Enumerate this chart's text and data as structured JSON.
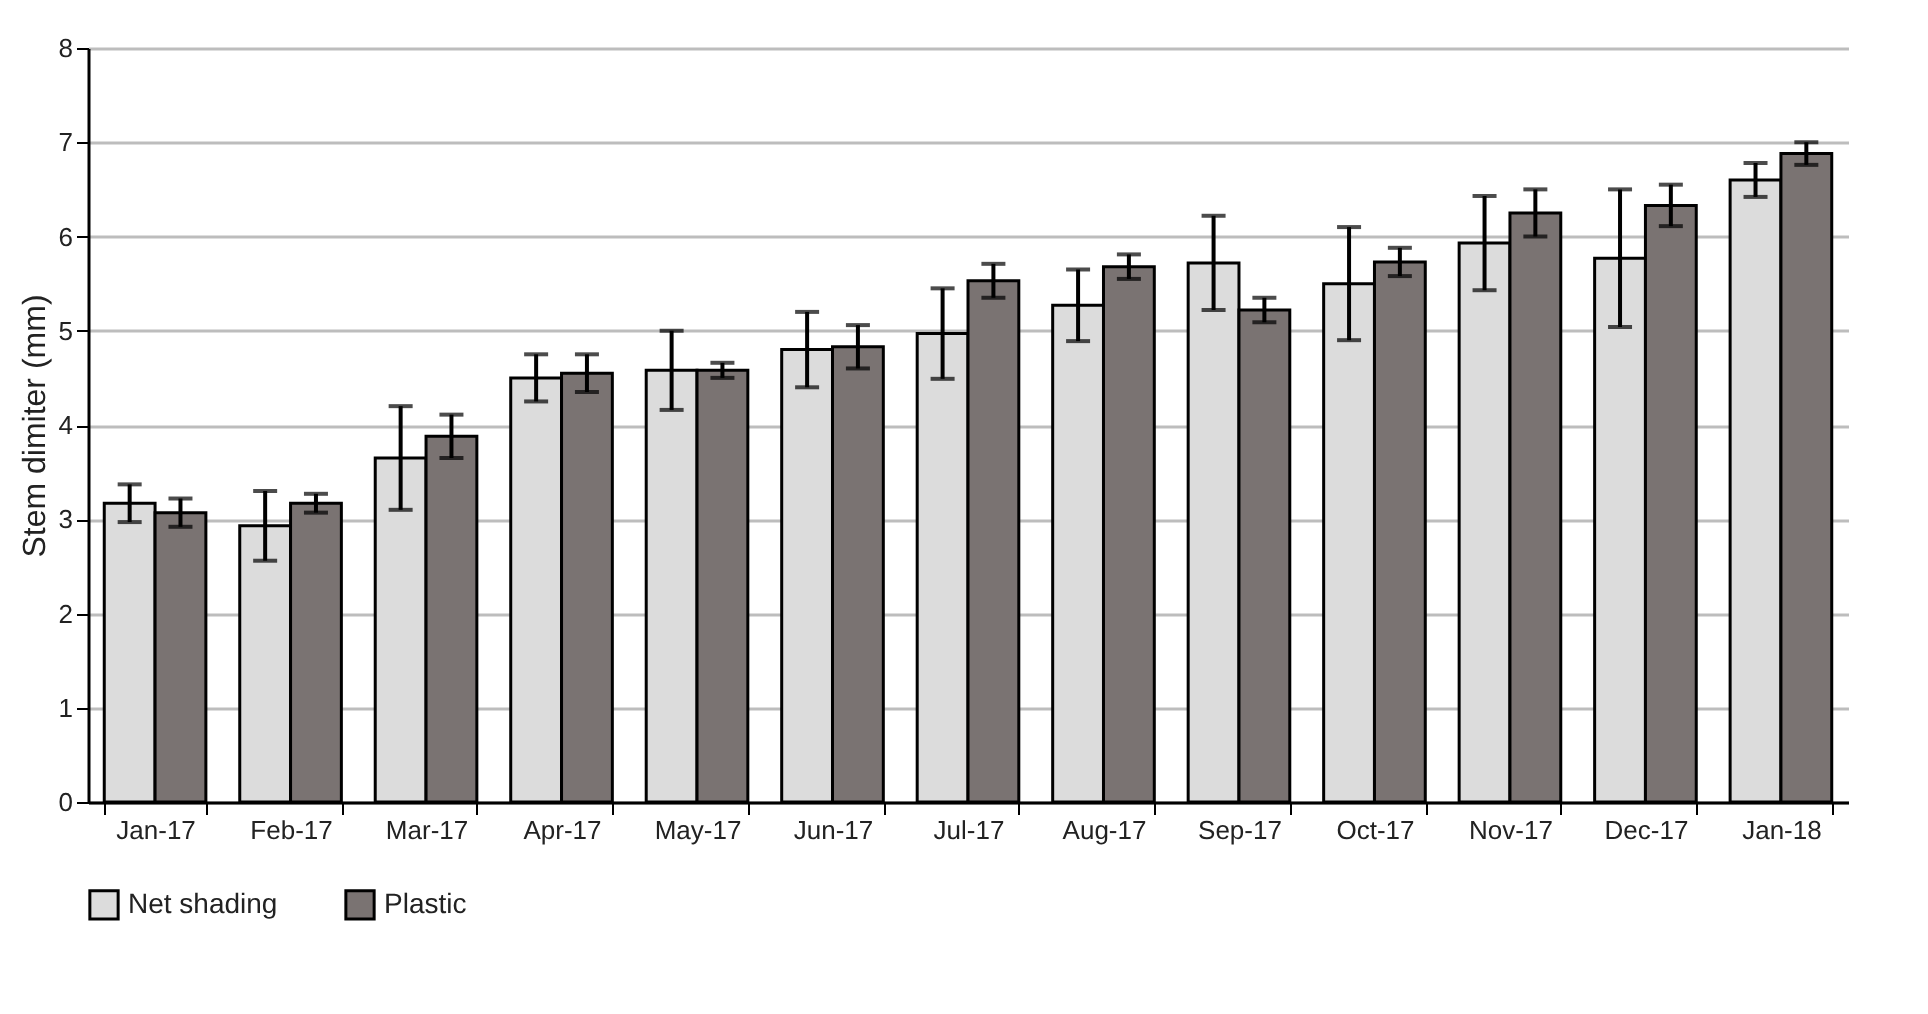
{
  "chart_data": {
    "type": "bar",
    "ylabel": "Stem dimiter (mm)",
    "categories": [
      "Jan-17",
      "Feb-17",
      "Mar-17",
      "Apr-17",
      "May-17",
      "Jun-17",
      "Jul-17",
      "Aug-17",
      "Sep-17",
      "Oct-17",
      "Nov-17",
      "Dec-17",
      "Jan-18"
    ],
    "series": [
      {
        "name": "Net shading",
        "color": "#dcdcdc",
        "values": [
          3.17,
          2.93,
          3.65,
          4.5,
          4.58,
          4.8,
          4.97,
          5.27,
          5.72,
          5.5,
          5.93,
          5.77,
          6.6
        ],
        "errors": [
          0.2,
          0.37,
          0.55,
          0.25,
          0.42,
          0.4,
          0.48,
          0.38,
          0.5,
          0.6,
          0.5,
          0.73,
          0.18
        ]
      },
      {
        "name": "Plastic",
        "color": "#7a7372",
        "values": [
          3.07,
          3.17,
          3.88,
          4.55,
          4.58,
          4.83,
          5.53,
          5.68,
          5.22,
          5.73,
          6.25,
          6.33,
          6.88
        ],
        "errors": [
          0.15,
          0.1,
          0.23,
          0.2,
          0.08,
          0.23,
          0.18,
          0.13,
          0.13,
          0.15,
          0.25,
          0.22,
          0.12
        ]
      }
    ],
    "ylim": [
      0,
      8
    ],
    "yticks": [
      0,
      1,
      2,
      3,
      4,
      5,
      6,
      7,
      8
    ],
    "grid": "y",
    "legend": "bottom"
  }
}
